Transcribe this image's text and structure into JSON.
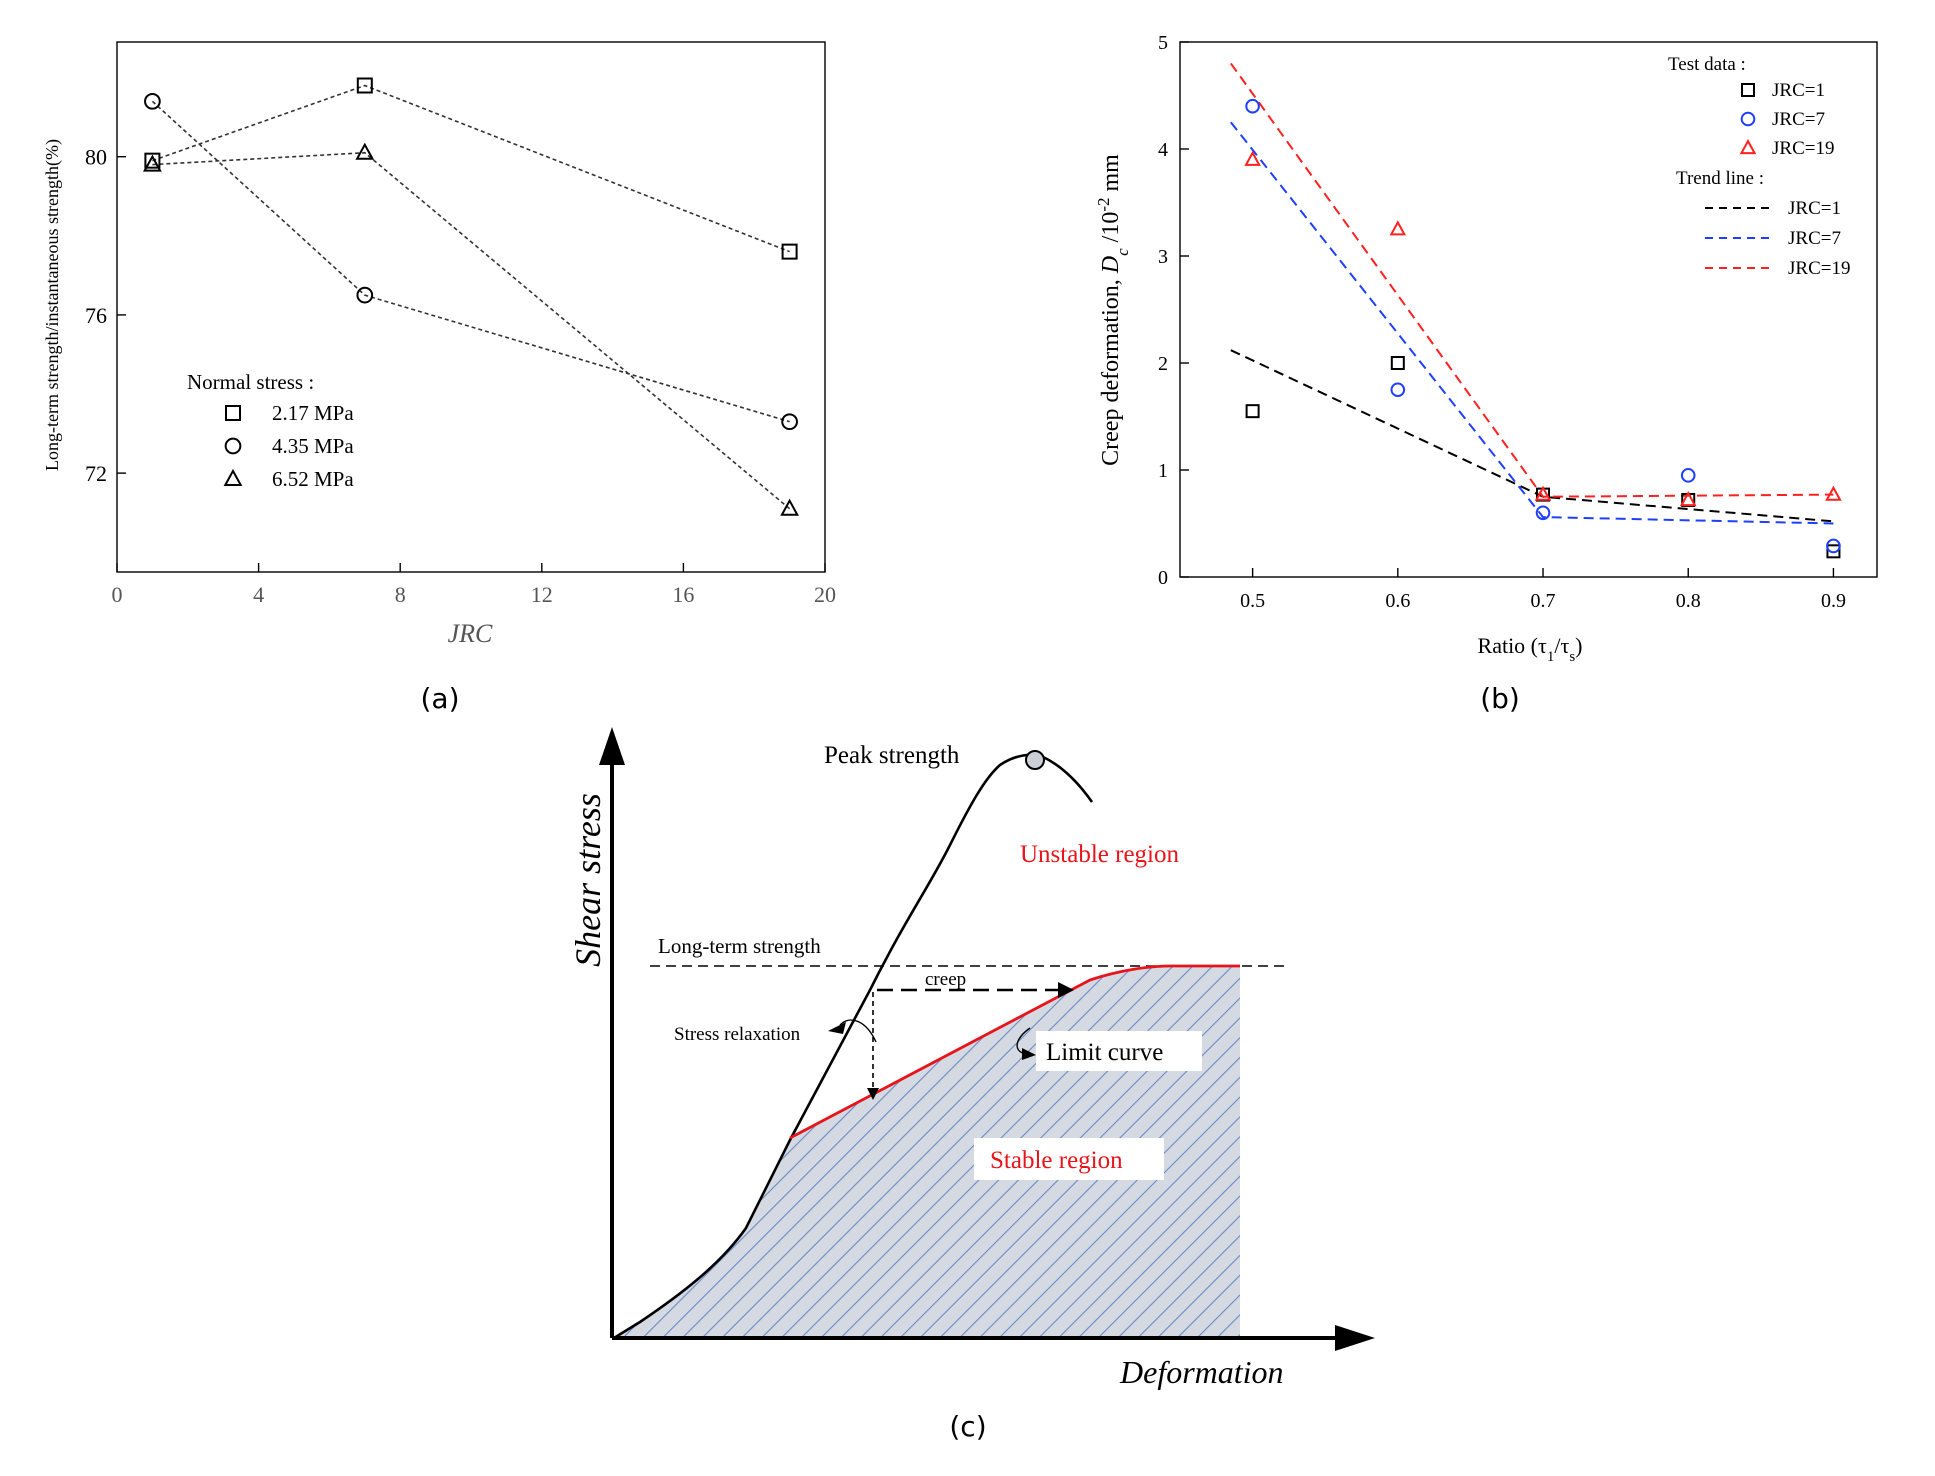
{
  "chart_data": [
    {
      "panel": "(a)",
      "type": "line",
      "xlabel": "JRC",
      "ylabel": "Long-term strength/instantaneous strength(%)",
      "xlim": [
        0,
        20
      ],
      "ylim": [
        69.5,
        82.9
      ],
      "xticks": [
        "0",
        "4",
        "8",
        "12",
        "16",
        "20"
      ],
      "yticks": [
        "72",
        "76",
        "80"
      ],
      "legend_title": "Normal stress :",
      "x": [
        1,
        7,
        19
      ],
      "series": [
        {
          "name": "2.17 MPa",
          "marker": "square",
          "values": [
            79.9,
            81.8,
            77.6
          ]
        },
        {
          "name": "4.35 MPa",
          "marker": "circle",
          "values": [
            81.4,
            76.5,
            73.3
          ]
        },
        {
          "name": "6.52 MPa",
          "marker": "triangle",
          "values": [
            79.8,
            80.1,
            71.1
          ]
        }
      ]
    },
    {
      "panel": "(b)",
      "type": "scatter",
      "xlabel": "Ratio (τ1/τs)",
      "ylabel": "Creep deformation, Dc /10⁻² mm",
      "xlim": [
        0.45,
        0.93
      ],
      "ylim": [
        0,
        5
      ],
      "xticks": [
        "0.5",
        "0.6",
        "0.7",
        "0.8",
        "0.9"
      ],
      "yticks": [
        "0",
        "1",
        "2",
        "3",
        "4",
        "5"
      ],
      "legend_test_title": "Test data :",
      "legend_trend_title": "Trend line :",
      "x": [
        0.5,
        0.6,
        0.7,
        0.8,
        0.9
      ],
      "series": [
        {
          "name": "JRC=1",
          "marker": "square",
          "color": "#000000",
          "values": [
            1.55,
            2.0,
            0.77,
            0.72,
            0.24
          ]
        },
        {
          "name": "JRC=7",
          "marker": "circle",
          "color": "#1f3fff",
          "values": [
            4.4,
            1.75,
            0.6,
            0.95,
            0.29
          ]
        },
        {
          "name": "JRC=19",
          "marker": "triangle",
          "color": "#ff2020",
          "values": [
            3.9,
            3.25,
            0.77,
            0.72,
            0.77
          ]
        }
      ],
      "trend_lines": [
        {
          "name": "JRC=1",
          "color": "#000000",
          "x": [
            0.485,
            0.7,
            0.9
          ],
          "y": [
            2.12,
            0.75,
            0.52
          ]
        },
        {
          "name": "JRC=7",
          "color": "#1f3fff",
          "x": [
            0.485,
            0.7,
            0.9
          ],
          "y": [
            4.25,
            0.56,
            0.5
          ]
        },
        {
          "name": "JRC=19",
          "color": "#ff2020",
          "x": [
            0.485,
            0.7,
            0.9
          ],
          "y": [
            4.8,
            0.75,
            0.77
          ]
        }
      ]
    },
    {
      "panel": "(c)",
      "type": "diagram",
      "xlabel": "Deformation",
      "ylabel": "Shear stress",
      "labels": {
        "peak": "Peak strength",
        "unstable": "Unstable region",
        "long_term": "Long-term strength",
        "creep": "creep",
        "relaxation": "Stress relaxation",
        "limit": "Limit curve",
        "stable": "Stable region"
      }
    }
  ],
  "captions": {
    "a": "(a)",
    "b": "(b)",
    "c": "(c)"
  },
  "colors": {
    "black_series": "#000000",
    "blue_series": "#1f3fff",
    "red_series": "#ff2020",
    "stable_fill": "#d4d9e2",
    "hatch": "#6b8bc4",
    "limit_curve": "#e8141a"
  }
}
